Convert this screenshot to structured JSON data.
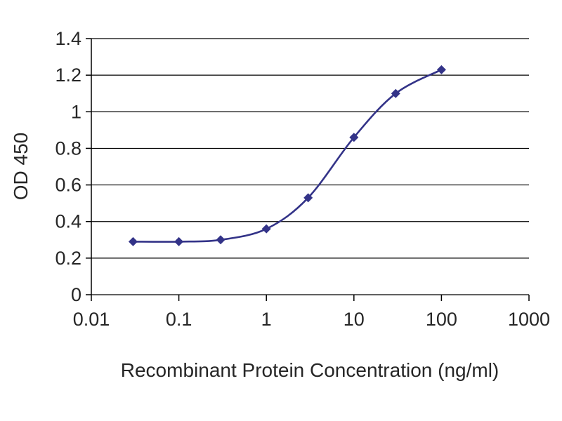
{
  "chart_data": {
    "type": "line",
    "title": "",
    "xlabel": "Recombinant Protein Concentration (ng/ml)",
    "ylabel": "OD 450",
    "x_scale": "log",
    "x": [
      0.03,
      0.1,
      0.3,
      1,
      3,
      10,
      30,
      100
    ],
    "y": [
      0.29,
      0.29,
      0.3,
      0.36,
      0.53,
      0.86,
      1.1,
      1.23
    ],
    "xlim": [
      0.01,
      1000
    ],
    "ylim": [
      0,
      1.4
    ],
    "x_ticks": [
      0.01,
      0.1,
      1,
      10,
      100,
      1000
    ],
    "x_tick_labels": [
      "0.01",
      "0.1",
      "1",
      "10",
      "100",
      "1000"
    ],
    "y_ticks": [
      0,
      0.2,
      0.4,
      0.6,
      0.8,
      1,
      1.2,
      1.4
    ],
    "y_tick_labels": [
      "0",
      "0.2",
      "0.4",
      "0.6",
      "0.8",
      "1",
      "1.2",
      "1.4"
    ],
    "grid": "horizontal",
    "legend": "none",
    "marker": "diamond",
    "line_color": "#333388",
    "axis_color": "#000000",
    "text_color": "#262626"
  }
}
